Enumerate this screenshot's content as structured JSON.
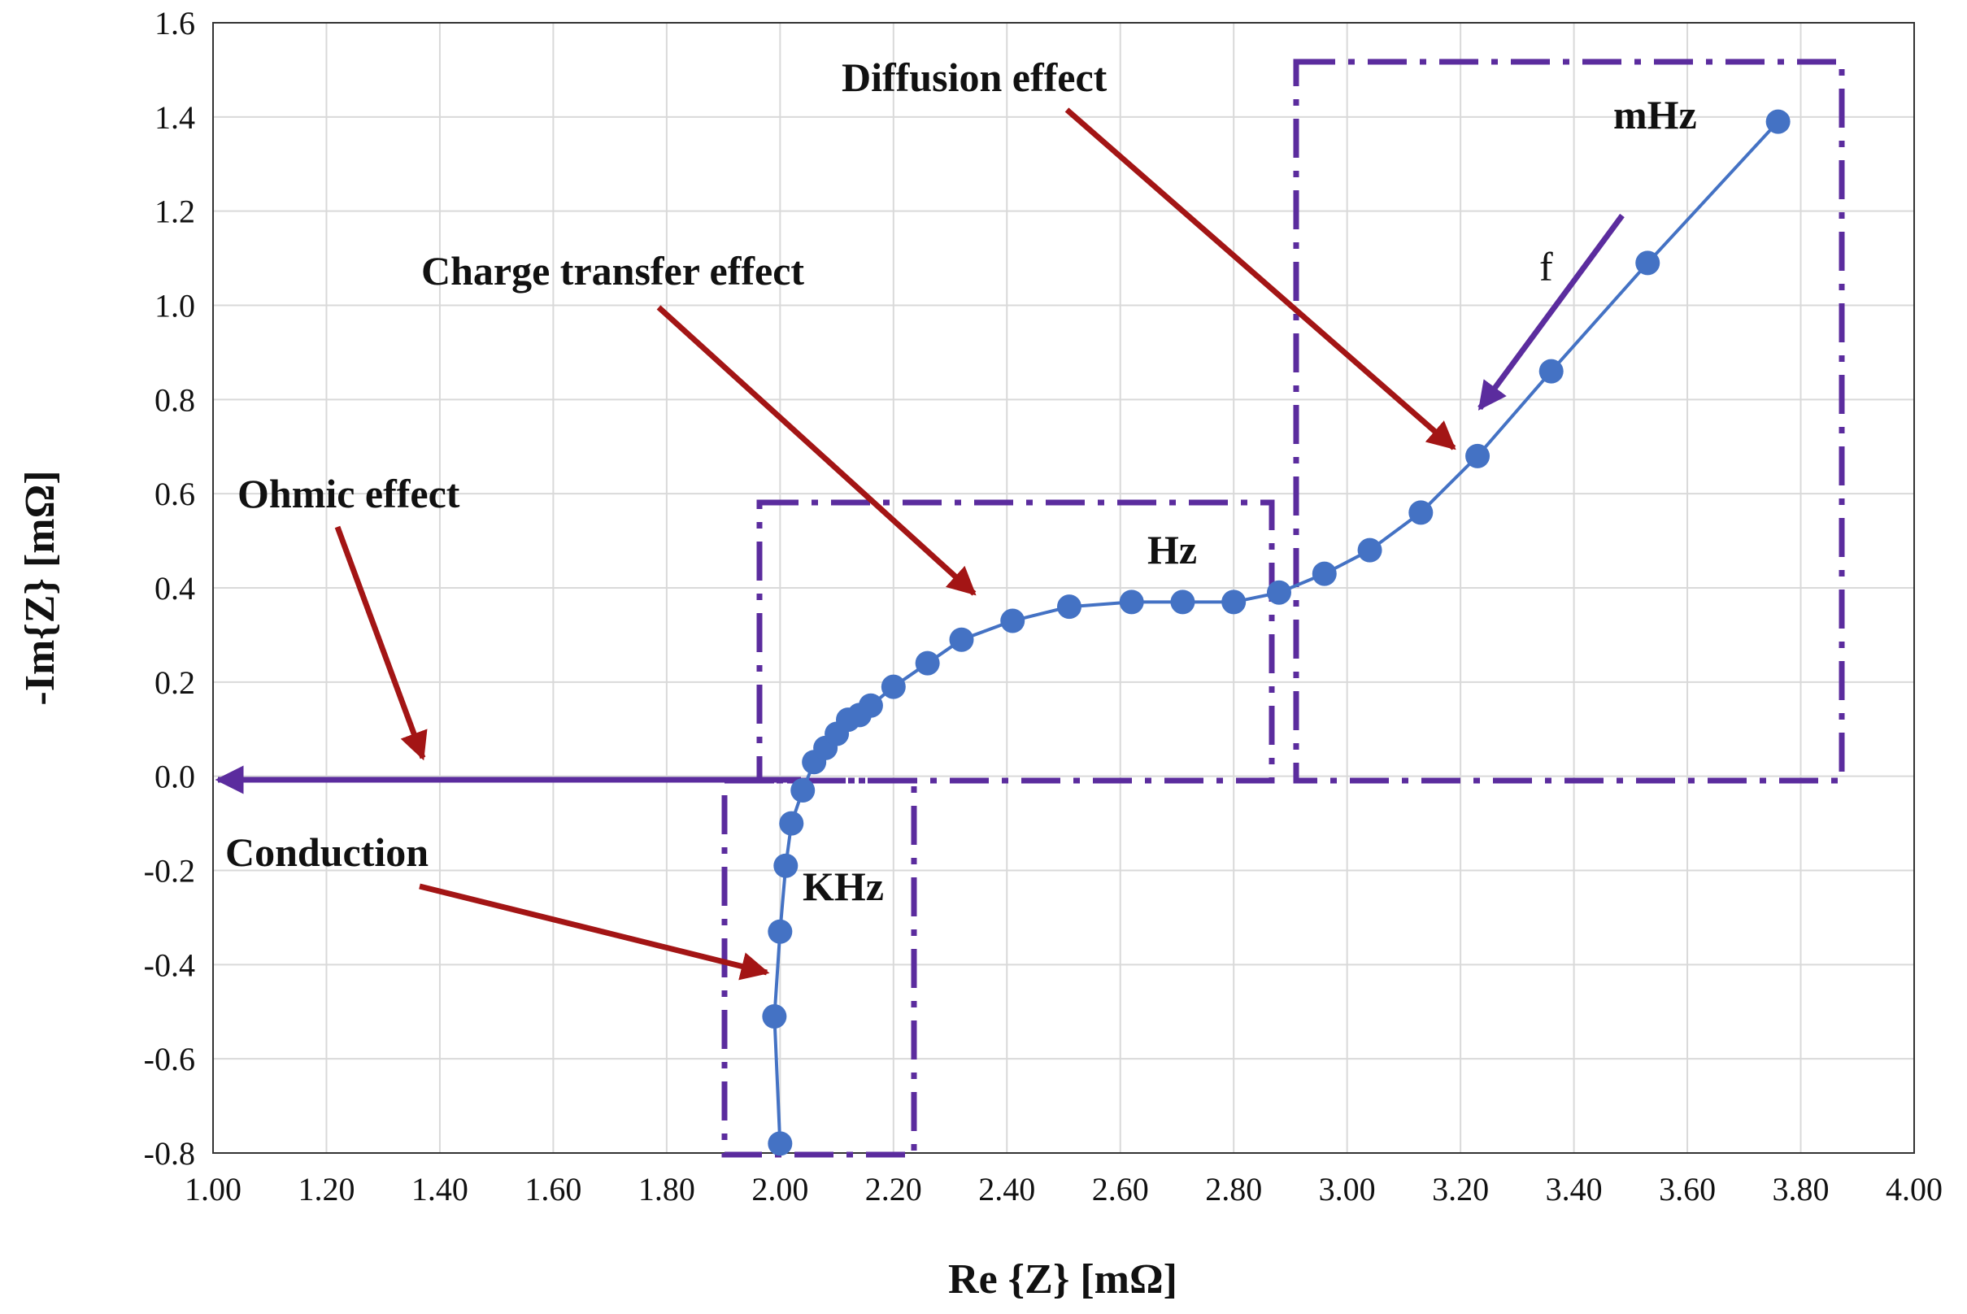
{
  "chart_data": {
    "type": "scatter",
    "xlabel": "Re {Z} [mΩ]",
    "ylabel": "-Im{Z} [mΩ]",
    "xlim": [
      1.0,
      4.0
    ],
    "ylim": [
      -0.8,
      1.6
    ],
    "grid": true,
    "xticks": [
      "1.00",
      "1.20",
      "1.40",
      "1.60",
      "1.80",
      "2.00",
      "2.20",
      "2.40",
      "2.60",
      "2.80",
      "3.00",
      "3.20",
      "3.40",
      "3.60",
      "3.80",
      "4.00"
    ],
    "yticks": [
      "-0.8",
      "-0.6",
      "-0.4",
      "-0.2",
      "0.0",
      "0.2",
      "0.4",
      "0.6",
      "0.8",
      "1.0",
      "1.2",
      "1.4",
      "1.6"
    ],
    "series": [
      {
        "color": "#4472c4",
        "points": [
          [
            2.0,
            -0.78
          ],
          [
            1.99,
            -0.51
          ],
          [
            2.0,
            -0.33
          ],
          [
            2.01,
            -0.19
          ],
          [
            2.02,
            -0.1
          ],
          [
            2.04,
            -0.03
          ],
          [
            2.06,
            0.03
          ],
          [
            2.08,
            0.06
          ],
          [
            2.1,
            0.09
          ],
          [
            2.12,
            0.12
          ],
          [
            2.14,
            0.13
          ],
          [
            2.16,
            0.15
          ],
          [
            2.2,
            0.19
          ],
          [
            2.26,
            0.24
          ],
          [
            2.32,
            0.29
          ],
          [
            2.41,
            0.33
          ],
          [
            2.51,
            0.36
          ],
          [
            2.62,
            0.37
          ],
          [
            2.71,
            0.37
          ],
          [
            2.8,
            0.37
          ],
          [
            2.88,
            0.39
          ],
          [
            2.96,
            0.43
          ],
          [
            3.04,
            0.48
          ],
          [
            3.13,
            0.56
          ],
          [
            3.23,
            0.68
          ],
          [
            3.36,
            0.86
          ],
          [
            3.53,
            1.09
          ],
          [
            3.76,
            1.39
          ]
        ]
      }
    ],
    "annotations": {
      "diffusion": "Diffusion effect",
      "charge_transfer": "Charge transfer effect",
      "ohmic": "Ohmic effect",
      "conduction": "Conduction",
      "mhz": "mHz",
      "hz": "Hz",
      "khz": "KHz",
      "f": "f"
    },
    "colors": {
      "curve": "#4472c4",
      "region_box": "#5b2c9e",
      "arrow_red": "#a31515",
      "arrow_purple": "#5b2c9e",
      "grid": "#d9d9d9"
    }
  }
}
